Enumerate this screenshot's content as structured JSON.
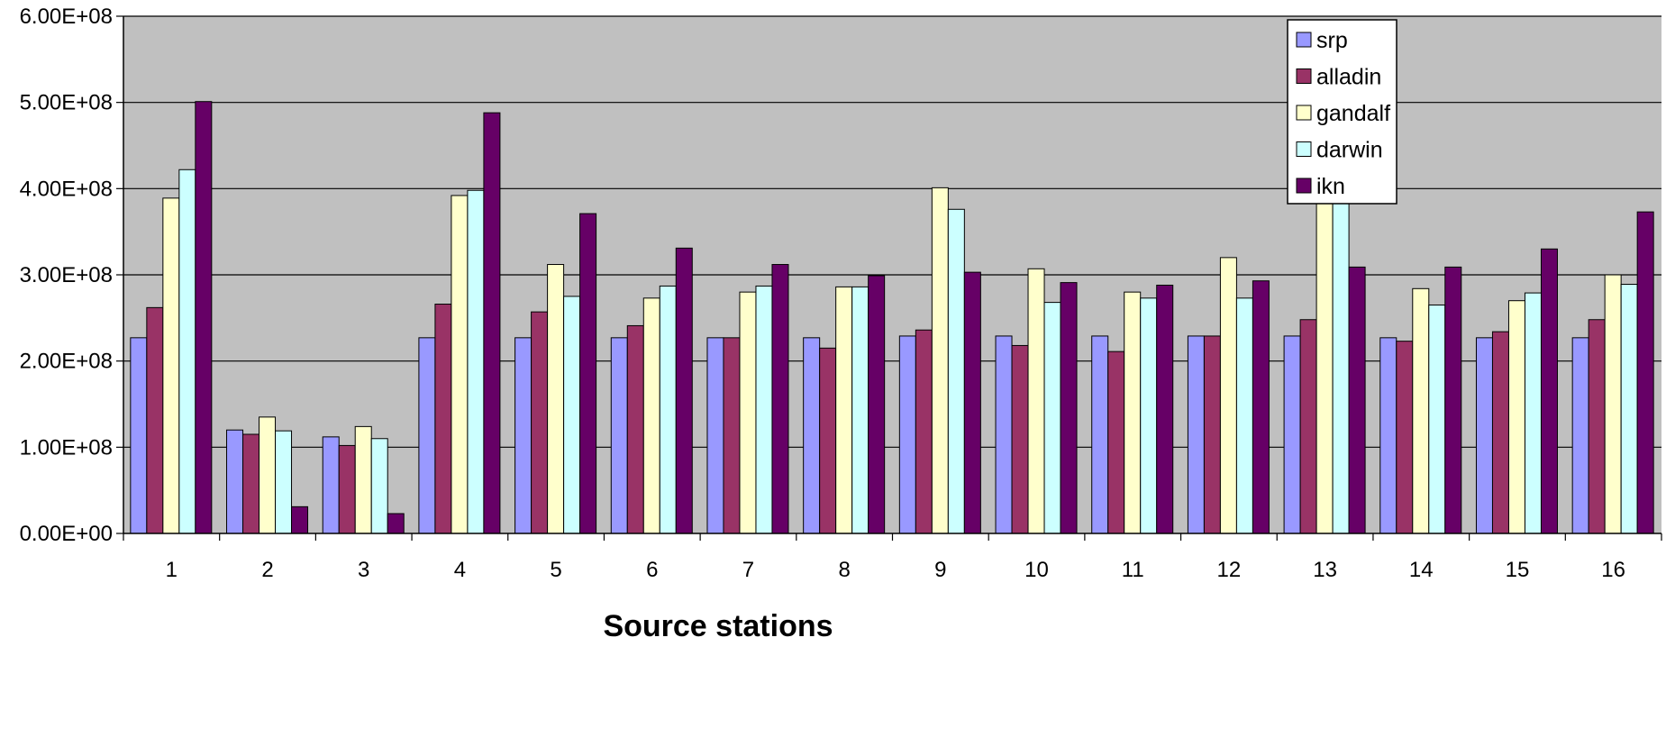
{
  "chart_data": {
    "type": "bar",
    "title": "",
    "xlabel": "Source stations",
    "ylabel": "",
    "ylim": [
      0,
      600000000
    ],
    "y_ticks": [
      0,
      100000000,
      200000000,
      300000000,
      400000000,
      500000000,
      600000000
    ],
    "y_tick_labels": [
      "0.00E+00",
      "1.00E+08",
      "2.00E+08",
      "3.00E+08",
      "4.00E+08",
      "5.00E+08",
      "6.00E+08"
    ],
    "grid": true,
    "legend_position": "top-right",
    "plot_background": "#c0c0c0",
    "categories": [
      "1",
      "2",
      "3",
      "4",
      "5",
      "6",
      "7",
      "8",
      "9",
      "10",
      "11",
      "12",
      "13",
      "14",
      "15",
      "16"
    ],
    "series": [
      {
        "name": "srp",
        "color": "#9999ff",
        "values": [
          227000000,
          120000000,
          112000000,
          227000000,
          227000000,
          227000000,
          227000000,
          227000000,
          229000000,
          229000000,
          229000000,
          229000000,
          229000000,
          227000000,
          227000000,
          227000000
        ]
      },
      {
        "name": "alladin",
        "color": "#993366",
        "values": [
          262000000,
          115000000,
          102000000,
          266000000,
          257000000,
          241000000,
          227000000,
          215000000,
          236000000,
          218000000,
          211000000,
          229000000,
          248000000,
          223000000,
          234000000,
          248000000
        ]
      },
      {
        "name": "gandalf",
        "color": "#ffffcc",
        "values": [
          389000000,
          135000000,
          124000000,
          392000000,
          312000000,
          273000000,
          280000000,
          286000000,
          401000000,
          307000000,
          280000000,
          320000000,
          413000000,
          284000000,
          270000000,
          300000000
        ]
      },
      {
        "name": "darwin",
        "color": "#ccffff",
        "values": [
          422000000,
          119000000,
          110000000,
          398000000,
          275000000,
          287000000,
          287000000,
          286000000,
          376000000,
          268000000,
          273000000,
          273000000,
          392000000,
          265000000,
          279000000,
          289000000
        ]
      },
      {
        "name": "ikn",
        "color": "#660066",
        "values": [
          501000000,
          31000000,
          23000000,
          488000000,
          371000000,
          331000000,
          312000000,
          299000000,
          303000000,
          291000000,
          288000000,
          293000000,
          309000000,
          309000000,
          330000000,
          373000000
        ]
      }
    ]
  }
}
